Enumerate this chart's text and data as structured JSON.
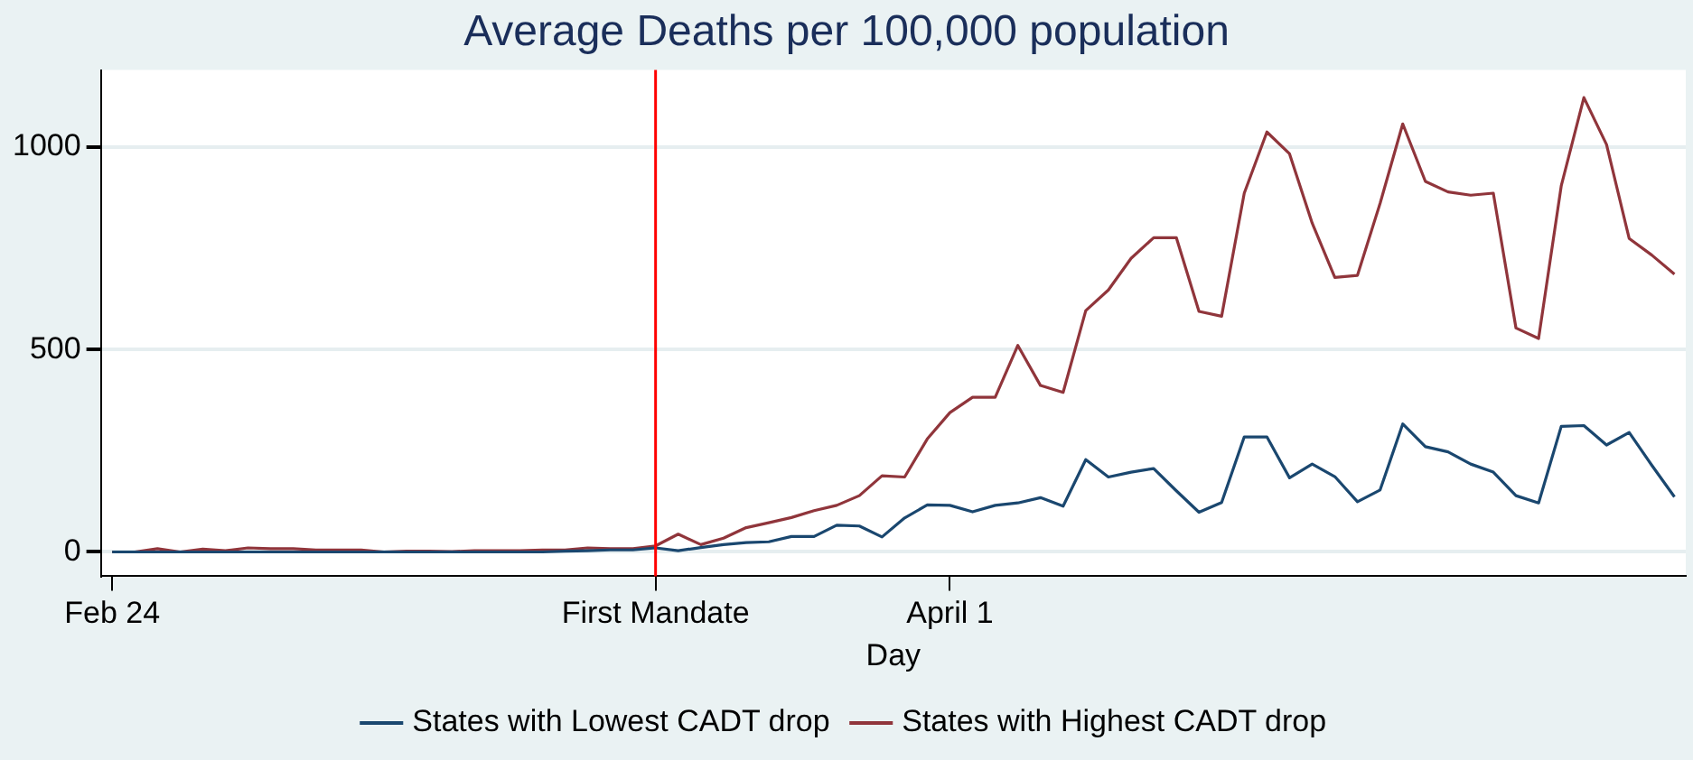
{
  "chart_data": {
    "type": "line",
    "title": "Average Deaths per 100,000 population",
    "xlabel": "Day",
    "categories": [
      "Feb 24",
      null,
      null,
      null,
      null,
      null,
      null,
      null,
      null,
      null,
      null,
      null,
      null,
      null,
      null,
      null,
      null,
      null,
      null,
      null,
      null,
      null,
      null,
      null,
      "First Mandate",
      null,
      null,
      null,
      null,
      null,
      null,
      null,
      null,
      null,
      null,
      null,
      null,
      "April 1",
      null,
      null,
      null,
      null,
      null,
      null,
      null,
      null,
      null,
      null,
      null,
      null,
      null,
      null,
      null,
      null,
      null,
      null,
      null,
      null,
      null,
      null,
      null,
      null,
      null,
      null,
      null,
      null,
      null,
      null,
      null,
      null
    ],
    "series": [
      {
        "name": "States with Lowest CADT drop",
        "color": "#1a476f",
        "values": [
          0,
          0,
          0,
          0,
          0,
          0,
          0,
          0,
          0,
          0,
          0,
          0,
          0,
          0,
          0,
          0,
          0,
          0,
          0,
          0,
          2,
          3,
          5,
          5,
          10,
          3,
          11,
          18,
          23,
          25,
          38,
          38,
          66,
          64,
          37,
          84,
          116,
          115,
          99,
          115,
          121,
          134,
          113,
          228,
          185,
          197,
          206,
          151,
          98,
          122,
          284,
          284,
          183,
          217,
          186,
          124,
          153,
          316,
          260,
          247,
          217,
          197,
          139,
          121,
          310,
          312,
          264,
          295,
          214,
          136
        ]
      },
      {
        "name": "States with Highest CADT drop",
        "color": "#90353b",
        "values": [
          0,
          0,
          8,
          0,
          7,
          3,
          10,
          8,
          8,
          5,
          5,
          5,
          0,
          2,
          2,
          1,
          3,
          3,
          3,
          5,
          5,
          10,
          8,
          8,
          15,
          44,
          18,
          34,
          60,
          72,
          85,
          102,
          115,
          139,
          188,
          185,
          279,
          344,
          382,
          382,
          510,
          411,
          394,
          596,
          647,
          725,
          776,
          776,
          594,
          582,
          886,
          1037,
          983,
          812,
          678,
          683,
          861,
          1057,
          915,
          889,
          881,
          886,
          553,
          527,
          904,
          1122,
          1006,
          774,
          733,
          686
        ]
      }
    ],
    "ylim": [
      -60,
      1190
    ],
    "yticks": [
      0,
      500,
      1000
    ],
    "ref_lines": [
      {
        "axis": "x",
        "value": "First Mandate",
        "color": "#ff0000"
      }
    ],
    "grid": "y",
    "legend": "bottom",
    "marker": "none",
    "line_style": "solid"
  }
}
